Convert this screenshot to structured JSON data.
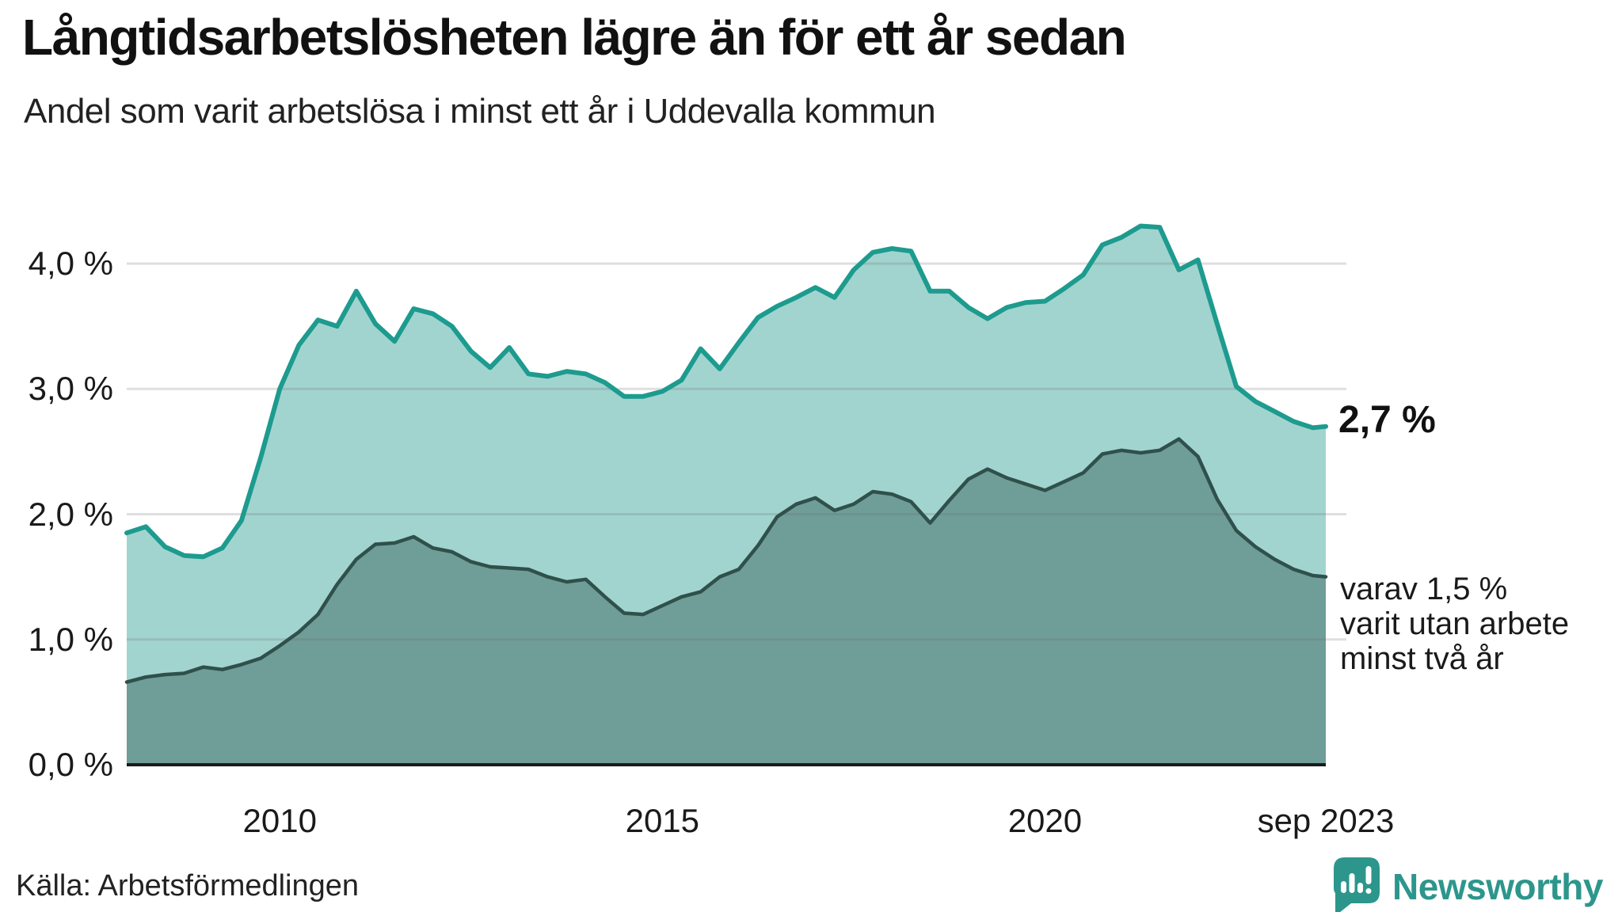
{
  "header": {
    "title": "Långtidsarbetslösheten lägre än för ett år sedan",
    "subtitle": "Andel som varit arbetslösa i minst ett år i Uddevalla kommun"
  },
  "annotations": {
    "latest_total": "2,7 %",
    "secondary_lines": [
      "varav 1,5 %",
      "varit utan arbete",
      "minst två år"
    ]
  },
  "footer": {
    "source": "Källa: Arbetsförmedlingen",
    "brand": "Newsworthy"
  },
  "colors": {
    "total_line": "#1d9b8e",
    "total_fill": "#a2d4cf",
    "two_year_line": "#2f504b",
    "two_year_fill": "#6f9d98",
    "gridline": "rgba(109,109,109,0.22)",
    "axis_line": "#1a1a1a",
    "brand_teal": "#2d968c"
  },
  "chart_data": {
    "type": "area",
    "title": "Långtidsarbetslösheten lägre än för ett år sedan",
    "subtitle": "Andel som varit arbetslösa i minst ett år i Uddevalla kommun",
    "xlabel": "",
    "ylabel": "",
    "xlim": [
      2008.0,
      2023.67
    ],
    "ylim": [
      0,
      4.55
    ],
    "grid": true,
    "legend_position": "none",
    "x_ticks": [
      {
        "value": 2010,
        "label": "2010"
      },
      {
        "value": 2015,
        "label": "2015"
      },
      {
        "value": 2020,
        "label": "2020"
      },
      {
        "value": 2023.67,
        "label": "sep 2023"
      }
    ],
    "y_ticks": [
      {
        "value": 0,
        "label": "0,0 %"
      },
      {
        "value": 1,
        "label": "1,0 %"
      },
      {
        "value": 2,
        "label": "2,0 %"
      },
      {
        "value": 3,
        "label": "3,0 %"
      },
      {
        "value": 4,
        "label": "4,0 %"
      }
    ],
    "x": [
      2008.0,
      2008.25,
      2008.5,
      2008.75,
      2009.0,
      2009.25,
      2009.5,
      2009.75,
      2010.0,
      2010.25,
      2010.5,
      2010.75,
      2011.0,
      2011.25,
      2011.5,
      2011.75,
      2012.0,
      2012.25,
      2012.5,
      2012.75,
      2013.0,
      2013.25,
      2013.5,
      2013.75,
      2014.0,
      2014.25,
      2014.5,
      2014.75,
      2015.0,
      2015.25,
      2015.5,
      2015.75,
      2016.0,
      2016.25,
      2016.5,
      2016.75,
      2017.0,
      2017.25,
      2017.5,
      2017.75,
      2018.0,
      2018.25,
      2018.5,
      2018.75,
      2019.0,
      2019.25,
      2019.5,
      2019.75,
      2020.0,
      2020.25,
      2020.5,
      2020.75,
      2021.0,
      2021.25,
      2021.5,
      2021.75,
      2022.0,
      2022.25,
      2022.5,
      2022.75,
      2023.0,
      2023.25,
      2023.5,
      2023.67
    ],
    "series": [
      {
        "name": "Arbetslösa minst ett år",
        "unit": "%",
        "end_value_label": "2,7 %",
        "values": [
          1.85,
          1.9,
          1.74,
          1.67,
          1.66,
          1.73,
          1.95,
          2.45,
          3.0,
          3.35,
          3.55,
          3.5,
          3.78,
          3.52,
          3.38,
          3.64,
          3.6,
          3.5,
          3.3,
          3.17,
          3.33,
          3.12,
          3.1,
          3.14,
          3.12,
          3.05,
          2.94,
          2.94,
          2.98,
          3.07,
          3.32,
          3.16,
          3.37,
          3.57,
          3.66,
          3.73,
          3.81,
          3.73,
          3.95,
          4.09,
          4.12,
          4.1,
          3.78,
          3.78,
          3.65,
          3.56,
          3.65,
          3.69,
          3.7,
          3.8,
          3.91,
          4.15,
          4.21,
          4.3,
          4.29,
          3.95,
          4.03,
          3.52,
          3.02,
          2.9,
          2.82,
          2.74,
          2.69,
          2.7
        ]
      },
      {
        "name": "Arbetslösa minst två år",
        "unit": "%",
        "end_value_label": "varav 1,5 % varit utan arbete minst två år",
        "values": [
          0.66,
          0.7,
          0.72,
          0.73,
          0.78,
          0.76,
          0.8,
          0.85,
          0.95,
          1.06,
          1.2,
          1.44,
          1.64,
          1.76,
          1.77,
          1.82,
          1.73,
          1.7,
          1.62,
          1.58,
          1.57,
          1.56,
          1.5,
          1.46,
          1.48,
          1.34,
          1.21,
          1.2,
          1.27,
          1.34,
          1.38,
          1.5,
          1.56,
          1.75,
          1.98,
          2.08,
          2.13,
          2.03,
          2.08,
          2.18,
          2.16,
          2.1,
          1.93,
          2.11,
          2.28,
          2.36,
          2.29,
          2.24,
          2.19,
          2.26,
          2.33,
          2.48,
          2.51,
          2.49,
          2.51,
          2.6,
          2.46,
          2.12,
          1.87,
          1.74,
          1.64,
          1.56,
          1.51,
          1.5
        ]
      }
    ]
  }
}
